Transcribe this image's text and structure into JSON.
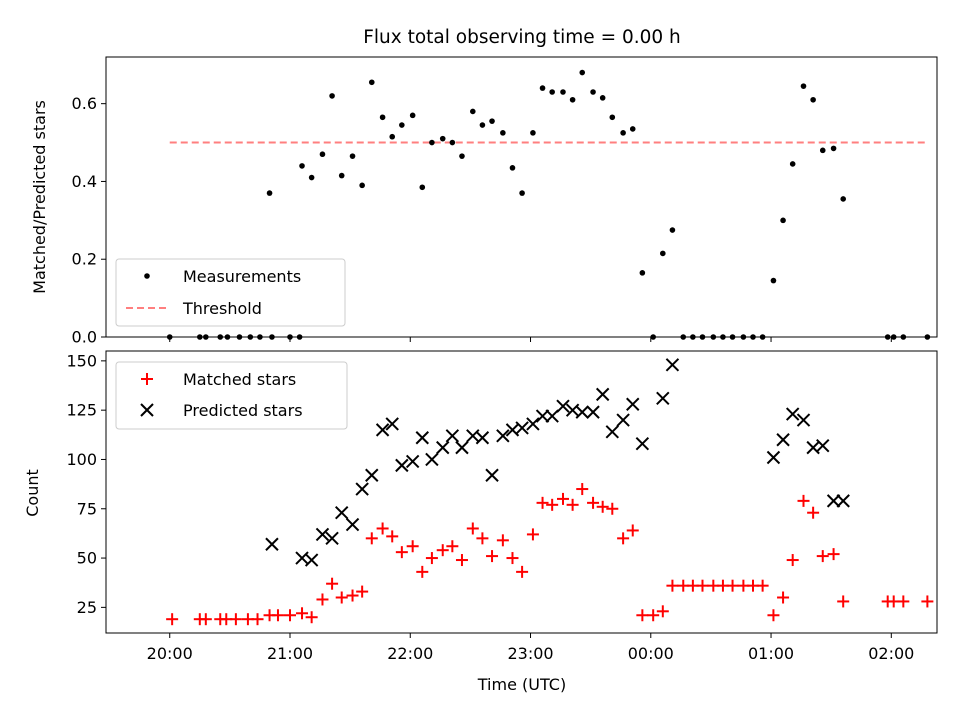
{
  "chart_data": [
    {
      "type": "scatter",
      "title": "Flux total observing time = 0.00 h",
      "ylabel": "Matched/Predicted stars",
      "xlabel": "",
      "xlim_hours": [
        19.47,
        26.38
      ],
      "ylim": [
        0,
        0.72
      ],
      "yticks": [
        "0.0",
        "0.2",
        "0.4",
        "0.6"
      ],
      "legend_position": "lower-left",
      "series": [
        {
          "name": "Measurements",
          "marker": "dot",
          "color": "#000000",
          "x_hours": [
            20.0,
            20.25,
            20.3,
            20.42,
            20.48,
            20.58,
            20.67,
            20.75,
            20.83,
            20.85,
            21.08,
            21.0,
            21.1,
            21.18,
            21.27,
            21.35,
            21.43,
            21.52,
            21.6,
            21.68,
            21.77,
            21.85,
            21.93,
            22.02,
            22.1,
            22.18,
            22.27,
            22.35,
            22.43,
            22.52,
            22.6,
            22.68,
            22.77,
            22.85,
            22.93,
            23.02,
            23.1,
            23.18,
            23.27,
            23.35,
            23.43,
            23.52,
            23.6,
            23.68,
            23.77,
            23.85,
            23.93,
            24.02,
            24.1,
            24.18,
            24.27,
            24.35,
            24.43,
            24.52,
            24.6,
            24.68,
            24.77,
            24.85,
            24.93,
            25.02,
            25.1,
            25.18,
            25.27,
            25.35,
            25.43,
            25.52,
            25.6,
            25.97,
            26.02,
            26.1,
            26.3
          ],
          "y": [
            0.0,
            0.0,
            0.0,
            0.0,
            0.0,
            0.0,
            0.0,
            0.0,
            0.37,
            0.0,
            0.0,
            0.0,
            0.44,
            0.41,
            0.47,
            0.62,
            0.415,
            0.465,
            0.39,
            0.655,
            0.565,
            0.515,
            0.545,
            0.57,
            0.385,
            0.5,
            0.51,
            0.5,
            0.465,
            0.58,
            0.545,
            0.555,
            0.525,
            0.435,
            0.37,
            0.525,
            0.64,
            0.63,
            0.63,
            0.61,
            0.68,
            0.63,
            0.615,
            0.565,
            0.525,
            0.535,
            0.165,
            0.0,
            0.215,
            0.275,
            0.0,
            0.0,
            0.0,
            0.0,
            0.0,
            0.0,
            0.0,
            0.0,
            0.0,
            0.145,
            0.3,
            0.445,
            0.645,
            0.61,
            0.48,
            0.485,
            0.355,
            0.0,
            0.0,
            0.0,
            0.0
          ]
        },
        {
          "name": "Threshold",
          "marker": "dashed-line",
          "color": "#ff7f7f",
          "x_hours": [
            20.0,
            26.3
          ],
          "y": [
            0.5,
            0.5
          ]
        }
      ]
    },
    {
      "type": "scatter",
      "title": "",
      "ylabel": "Count",
      "xlabel": "Time (UTC)",
      "xlim_hours": [
        19.47,
        26.38
      ],
      "ylim": [
        12,
        155
      ],
      "yticks": [
        25,
        50,
        75,
        100,
        125,
        150
      ],
      "xticks": [
        {
          "hour": 20,
          "label": "20:00"
        },
        {
          "hour": 21,
          "label": "21:00"
        },
        {
          "hour": 22,
          "label": "22:00"
        },
        {
          "hour": 23,
          "label": "23:00"
        },
        {
          "hour": 24,
          "label": "00:00"
        },
        {
          "hour": 25,
          "label": "01:00"
        },
        {
          "hour": 26,
          "label": "02:00"
        }
      ],
      "legend_position": "top-left",
      "series": [
        {
          "name": "Matched stars",
          "marker": "plus",
          "color": "#ff0000",
          "x_hours": [
            20.02,
            20.25,
            20.3,
            20.42,
            20.47,
            20.55,
            20.65,
            20.73,
            20.83,
            20.9,
            21.0,
            21.1,
            21.18,
            21.27,
            21.35,
            21.43,
            21.52,
            21.6,
            21.68,
            21.77,
            21.85,
            21.93,
            22.02,
            22.1,
            22.18,
            22.27,
            22.35,
            22.43,
            22.52,
            22.6,
            22.68,
            22.77,
            22.85,
            22.93,
            23.02,
            23.1,
            23.18,
            23.27,
            23.35,
            23.43,
            23.52,
            23.6,
            23.68,
            23.77,
            23.85,
            23.93,
            24.02,
            24.1,
            24.18,
            24.27,
            24.35,
            24.43,
            24.52,
            24.6,
            24.68,
            24.77,
            24.85,
            24.93,
            25.02,
            25.1,
            25.18,
            25.27,
            25.35,
            25.43,
            25.52,
            25.6,
            25.97,
            26.02,
            26.1,
            26.3
          ],
          "y": [
            19,
            19,
            19,
            19,
            19,
            19,
            19,
            19,
            21,
            21,
            21,
            22,
            20,
            29,
            37,
            30,
            31,
            33,
            60,
            65,
            61,
            53,
            56,
            43,
            50,
            54,
            56,
            49,
            65,
            60,
            51,
            59,
            50,
            43,
            62,
            78,
            77,
            80,
            77,
            85,
            78,
            76,
            75,
            60,
            64,
            21,
            21,
            23,
            36,
            36,
            36,
            36,
            36,
            36,
            36,
            36,
            36,
            36,
            21,
            30,
            49,
            79,
            73,
            51,
            52,
            28,
            28,
            28,
            28,
            28
          ]
        },
        {
          "name": "Predicted stars",
          "marker": "x",
          "color": "#000000",
          "x_hours": [
            20.85,
            21.1,
            21.18,
            21.27,
            21.35,
            21.43,
            21.52,
            21.6,
            21.68,
            21.77,
            21.85,
            21.93,
            22.02,
            22.1,
            22.18,
            22.27,
            22.35,
            22.43,
            22.52,
            22.6,
            22.68,
            22.77,
            22.85,
            22.93,
            23.02,
            23.1,
            23.18,
            23.27,
            23.35,
            23.43,
            23.52,
            23.6,
            23.68,
            23.77,
            23.85,
            23.93,
            24.1,
            24.18,
            25.02,
            25.1,
            25.18,
            25.27,
            25.35,
            25.43,
            25.52,
            25.6
          ],
          "y": [
            57,
            50,
            49,
            62,
            60,
            73,
            67,
            85,
            92,
            115,
            118,
            97,
            99,
            111,
            100,
            106,
            112,
            106,
            112,
            111,
            92,
            112,
            115,
            116,
            118,
            122,
            122,
            127,
            125,
            124,
            124,
            133,
            114,
            120,
            128,
            108,
            131,
            148,
            101,
            110,
            123,
            120,
            106,
            107,
            79,
            79
          ]
        }
      ]
    }
  ]
}
